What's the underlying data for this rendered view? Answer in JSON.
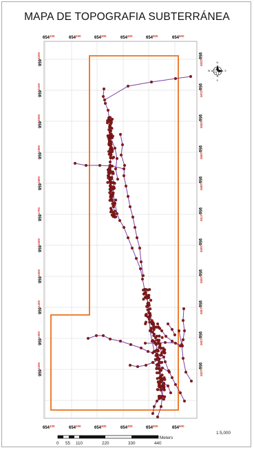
{
  "title": "MAPA DE TOPOGRAFIA  SUBTERRÁNEA",
  "coords": {
    "easting": [
      {
        "main": "654",
        "sup": "100"
      },
      {
        "main": "654",
        "sup": "200"
      },
      {
        "main": "654",
        "sup": "300"
      },
      {
        "main": "654",
        "sup": "400"
      },
      {
        "main": "654",
        "sup": "500"
      },
      {
        "main": "654",
        "sup": "600"
      }
    ],
    "northing": [
      {
        "main": "959",
        "sup": "2200"
      },
      {
        "main": "959",
        "sup": "2100"
      },
      {
        "main": "959",
        "sup": "2000"
      },
      {
        "main": "959",
        "sup": "1900"
      },
      {
        "main": "959",
        "sup": "1800"
      },
      {
        "main": "959",
        "sup": "1700"
      },
      {
        "main": "959",
        "sup": "1600"
      },
      {
        "main": "959",
        "sup": "1500"
      },
      {
        "main": "959",
        "sup": "1400"
      },
      {
        "main": "959",
        "sup": "1300"
      },
      {
        "main": "959",
        "sup": "1200"
      }
    ]
  },
  "scalebar": {
    "labels": [
      "0",
      "55",
      "110",
      "220",
      "330",
      "440"
    ],
    "unit": "Meters",
    "ratio": "1:5,000"
  },
  "north_arrow": {
    "letters": {
      "n": "N",
      "s": "S",
      "e": "E",
      "w": "W"
    },
    "icon": "north-arrow-icon"
  },
  "colors": {
    "boundary": "#e9701a",
    "survey_line": "#7b3fa6",
    "survey_point": "#8b1a1a",
    "grid": "#d2d2d2",
    "frame": "#a9a9a9"
  }
}
